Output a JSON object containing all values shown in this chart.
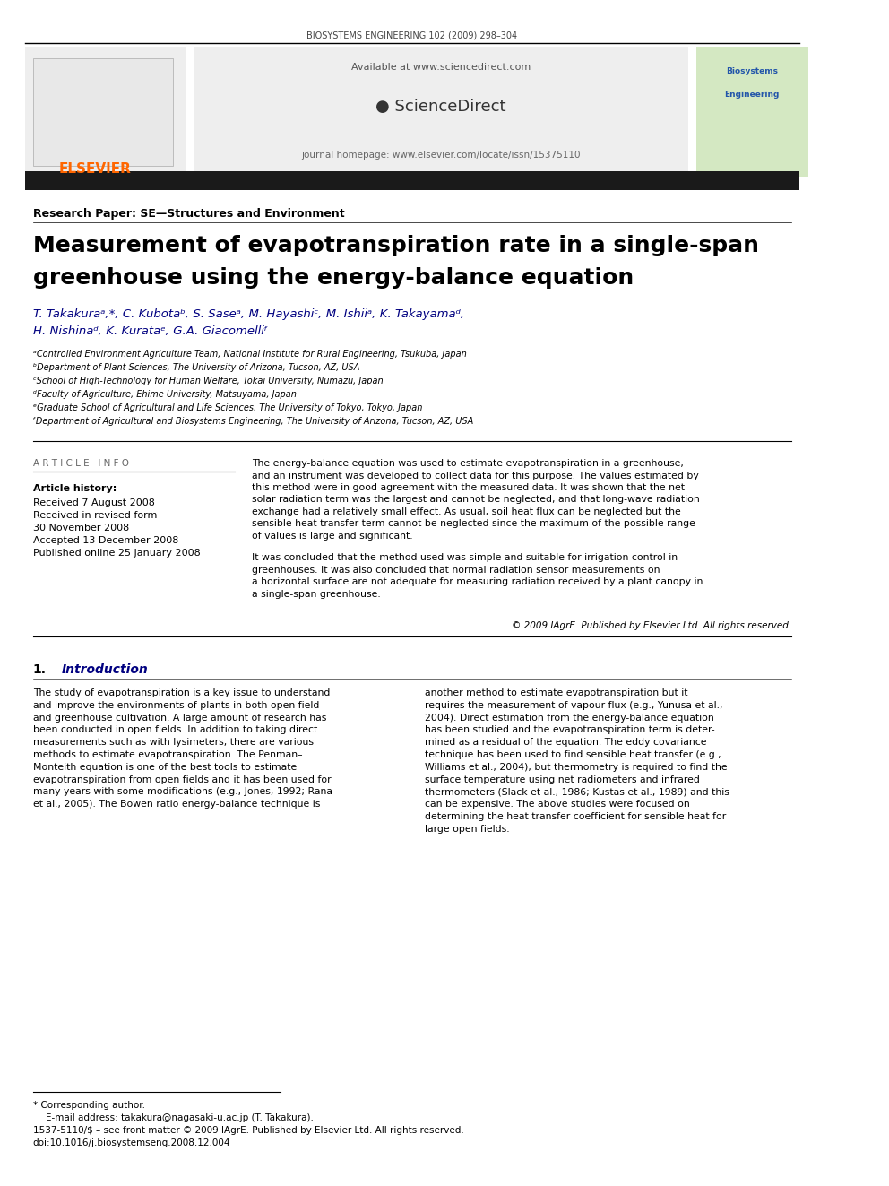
{
  "page_width": 9.92,
  "page_height": 13.23,
  "background_color": "#ffffff",
  "header_journal": "BIOSYSTEMS ENGINEERING 102 (2009) 298–304",
  "header_line_color": "#000000",
  "elsevier_color": "#FF6600",
  "sciencedirect_url": "Available at www.sciencedirect.com",
  "journal_homepage": "journal homepage: www.elsevier.com/locate/issn/15375110",
  "black_bar_color": "#1a1a1a",
  "section_label": "Research Paper: SE—Structures and Environment",
  "title_line1": "Measurement of evapotranspiration rate in a single-span",
  "title_line2": "greenhouse using the energy-balance equation",
  "authors": "T. Takakuraᵃ,*, C. Kubotaᵇ, S. Saseᵃ, M. Hayashiᶜ, M. Ishiiᵃ, K. Takayamaᵈ,",
  "authors2": "H. Nishinaᵈ, K. Kurataᵉ, G.A. Giacomelliᶠ",
  "affil_a": "ᵃControlled Environment Agriculture Team, National Institute for Rural Engineering, Tsukuba, Japan",
  "affil_b": "ᵇDepartment of Plant Sciences, The University of Arizona, Tucson, AZ, USA",
  "affil_c": "ᶜSchool of High-Technology for Human Welfare, Tokai University, Numazu, Japan",
  "affil_d": "ᵈFaculty of Agriculture, Ehime University, Matsuyama, Japan",
  "affil_e": "ᵉGraduate School of Agricultural and Life Sciences, The University of Tokyo, Tokyo, Japan",
  "affil_f": "ᶠDepartment of Agricultural and Biosystems Engineering, The University of Arizona, Tucson, AZ, USA",
  "article_info_title": "A R T I C L E   I N F O",
  "article_history_label": "Article history:",
  "received": "Received 7 August 2008",
  "revised": "Received in revised form",
  "revised2": "30 November 2008",
  "accepted": "Accepted 13 December 2008",
  "published": "Published online 25 January 2008",
  "abstract_para1": "The energy-balance equation was used to estimate evapotranspiration in a greenhouse,\nand an instrument was developed to collect data for this purpose. The values estimated by\nthis method were in good agreement with the measured data. It was shown that the net\nsolar radiation term was the largest and cannot be neglected, and that long-wave radiation\nexchange had a relatively small effect. As usual, soil heat flux can be neglected but the\nsensible heat transfer term cannot be neglected since the maximum of the possible range\nof values is large and significant.",
  "abstract_para2": "It was concluded that the method used was simple and suitable for irrigation control in\ngreenhouses. It was also concluded that normal radiation sensor measurements on\na horizontal surface are not adequate for measuring radiation received by a plant canopy in\na single-span greenhouse.",
  "copyright": "© 2009 IAgrE. Published by Elsevier Ltd. All rights reserved.",
  "intro_number": "1.",
  "intro_title": "Introduction",
  "intro_left": "The study of evapotranspiration is a key issue to understand\nand improve the environments of plants in both open field\nand greenhouse cultivation. A large amount of research has\nbeen conducted in open fields. In addition to taking direct\nmeasurements such as with lysimeters, there are various\nmethods to estimate evapotranspiration. The Penman–\nMonteith equation is one of the best tools to estimate\nevapotranspiration from open fields and it has been used for\nmany years with some modifications (e.g., Jones, 1992; Rana\net al., 2005). The Bowen ratio energy-balance technique is",
  "intro_right": "another method to estimate evapotranspiration but it\nrequires the measurement of vapour flux (e.g., Yunusa et al.,\n2004). Direct estimation from the energy-balance equation\nhas been studied and the evapotranspiration term is deter-\nmined as a residual of the equation. The eddy covariance\ntechnique has been used to find sensible heat transfer (e.g.,\nWilliams et al., 2004), but thermometry is required to find the\nsurface temperature using net radiometers and infrared\nthermometers (Slack et al., 1986; Kustas et al., 1989) and this\ncan be expensive. The above studies were focused on\ndetermining the heat transfer coefficient for sensible heat for\nlarge open fields.",
  "footnote_star": "* Corresponding author.",
  "footnote_email": "E-mail address: takakura@nagasaki-u.ac.jp (T. Takakura).",
  "footnote_issn": "1537-5110/$ – see front matter © 2009 IAgrE. Published by Elsevier Ltd. All rights reserved.",
  "footnote_doi": "doi:10.1016/j.biosystemseng.2008.12.004"
}
